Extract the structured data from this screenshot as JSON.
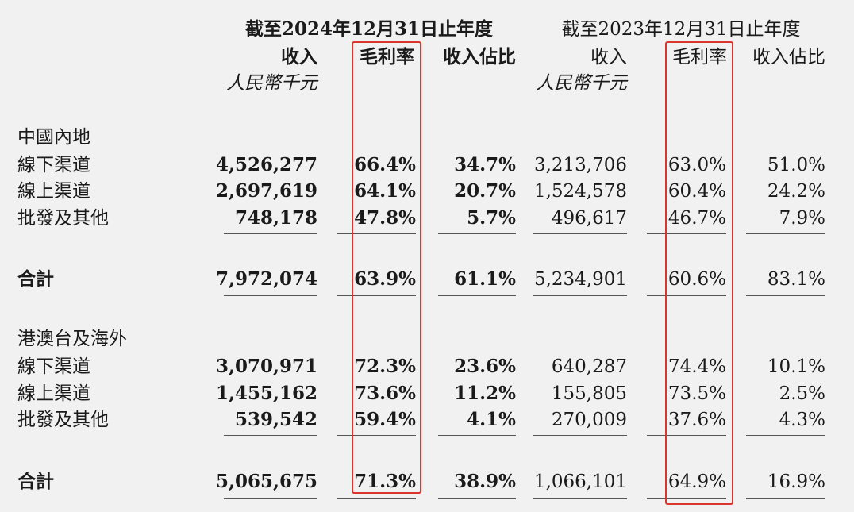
{
  "header": {
    "period_2024": "截至2024年12月31日止年度",
    "period_2023": "截至2023年12月31日止年度",
    "revenue": "收入",
    "gross_margin": "毛利率",
    "revenue_share": "收入佔比",
    "currency_unit": "人民幣千元"
  },
  "sections": [
    {
      "title": "中國內地",
      "rows": [
        {
          "label": "線下渠道",
          "rev24": "4,526,277",
          "gm24": "66.4%",
          "share24": "34.7%",
          "rev23": "3,213,706",
          "gm23": "63.0%",
          "share23": "51.0%"
        },
        {
          "label": "線上渠道",
          "rev24": "2,697,619",
          "gm24": "64.1%",
          "share24": "20.7%",
          "rev23": "1,524,578",
          "gm23": "60.4%",
          "share23": "24.2%"
        },
        {
          "label": "批發及其他",
          "rev24": "748,178",
          "gm24": "47.8%",
          "share24": "5.7%",
          "rev23": "496,617",
          "gm23": "46.7%",
          "share23": "7.9%"
        }
      ],
      "total": {
        "label": "合計",
        "rev24": "7,972,074",
        "gm24": "63.9%",
        "share24": "61.1%",
        "rev23": "5,234,901",
        "gm23": "60.6%",
        "share23": "83.1%"
      }
    },
    {
      "title": "港澳台及海外",
      "rows": [
        {
          "label": "線下渠道",
          "rev24": "3,070,971",
          "gm24": "72.3%",
          "share24": "23.6%",
          "rev23": "640,287",
          "gm23": "74.4%",
          "share23": "10.1%"
        },
        {
          "label": "線上渠道",
          "rev24": "1,455,162",
          "gm24": "73.6%",
          "share24": "11.2%",
          "rev23": "155,805",
          "gm23": "73.5%",
          "share23": "2.5%"
        },
        {
          "label": "批發及其他",
          "rev24": "539,542",
          "gm24": "59.4%",
          "share24": "4.1%",
          "rev23": "270,009",
          "gm23": "37.6%",
          "share23": "4.3%"
        }
      ],
      "total": {
        "label": "合計",
        "rev24": "5,065,675",
        "gm24": "71.3%",
        "share24": "38.9%",
        "rev23": "1,066,101",
        "gm23": "64.9%",
        "share23": "16.9%"
      }
    }
  ],
  "highlight_color": "#d9362e"
}
